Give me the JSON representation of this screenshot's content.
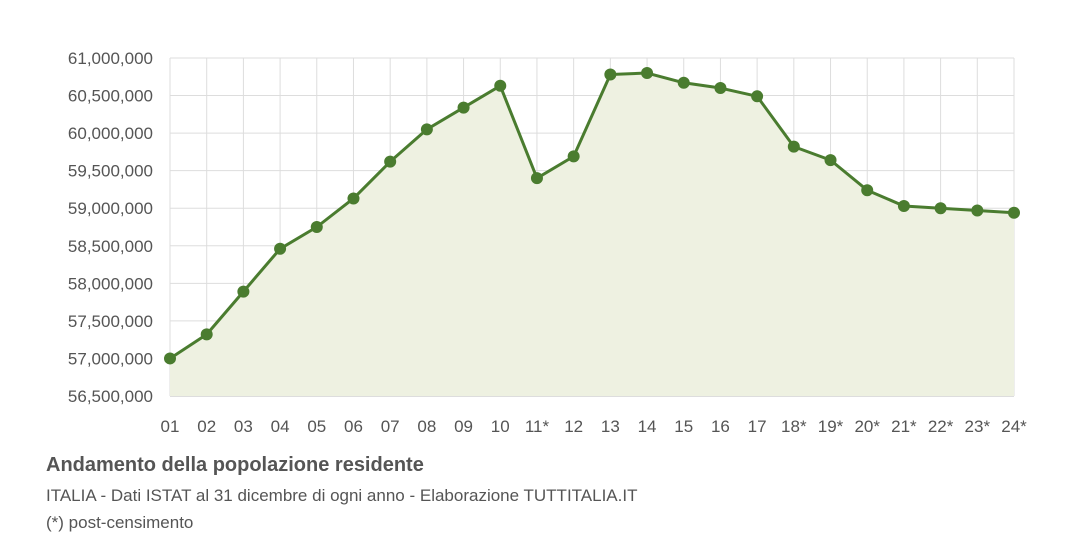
{
  "chart_data": {
    "type": "area",
    "categories": [
      "01",
      "02",
      "03",
      "04",
      "05",
      "06",
      "07",
      "08",
      "09",
      "10",
      "11*",
      "12",
      "13",
      "14",
      "15",
      "16",
      "17",
      "18*",
      "19*",
      "20*",
      "21*",
      "22*",
      "23*",
      "24*"
    ],
    "values": [
      57000000,
      57320000,
      57890000,
      58460000,
      58750000,
      59130000,
      59620000,
      60050000,
      60340000,
      60630000,
      59400000,
      59690000,
      60780000,
      60800000,
      60670000,
      60600000,
      60490000,
      59820000,
      59640000,
      59240000,
      59030000,
      59000000,
      58970000,
      58940000
    ],
    "yticks": [
      "56,500,000",
      "57,000,000",
      "57,500,000",
      "58,000,000",
      "58,500,000",
      "59,000,000",
      "59,500,000",
      "60,000,000",
      "60,500,000",
      "61,000,000"
    ],
    "ylim": [
      56500000,
      61000000
    ],
    "grid": true,
    "colors": {
      "line": "#4a7c2f",
      "fill": "#eef1e1",
      "grid": "#dddddd",
      "axis": "#bbbbbb"
    }
  },
  "caption": {
    "title": "Andamento della popolazione residente",
    "subtitle": "ITALIA - Dati ISTAT al 31 dicembre di ogni anno - Elaborazione TUTTITALIA.IT",
    "note": "(*) post-censimento"
  }
}
